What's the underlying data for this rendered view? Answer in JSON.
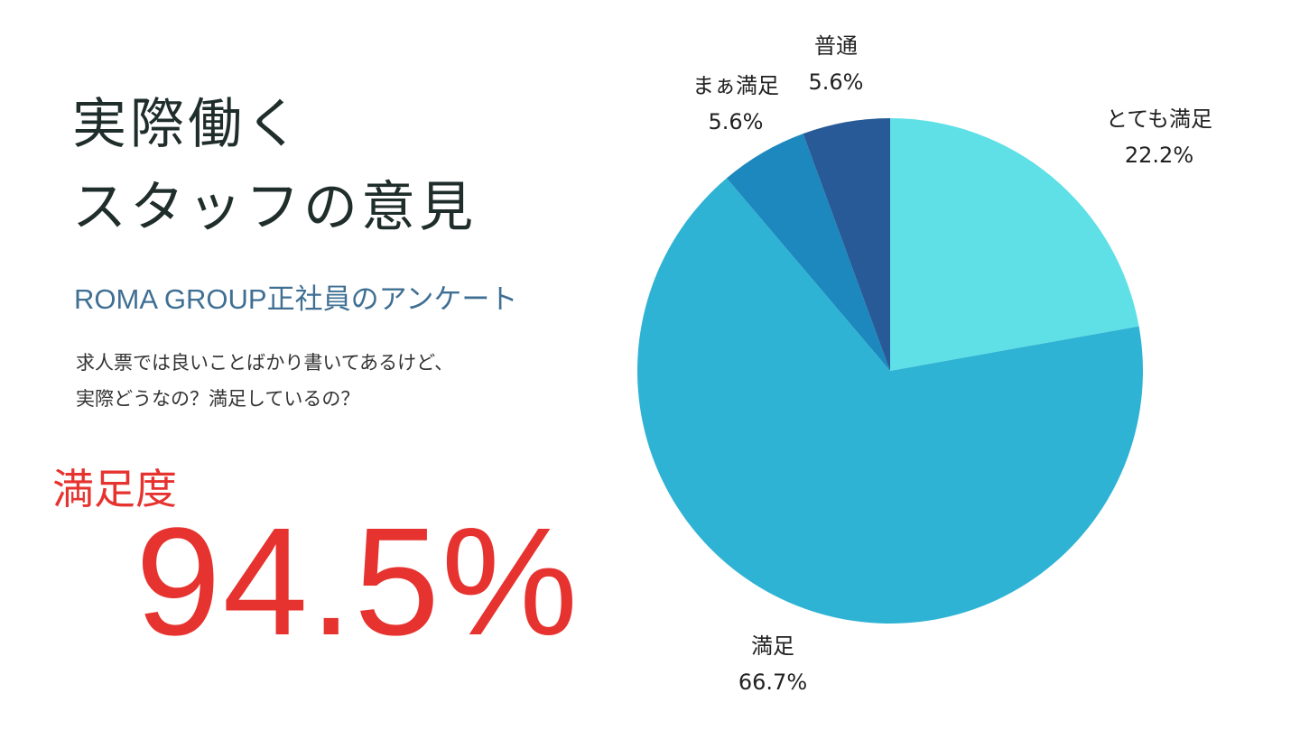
{
  "headline": {
    "line1": "実際働く",
    "line2": "スタッフの意見"
  },
  "subtitle": "ROMA GROUP正社員のアンケート",
  "description": {
    "line1": "求人票では良いことばかり書いてあるけど、",
    "line2": "実際どうなの？満足しているの？"
  },
  "satisfaction": {
    "label": "満足度",
    "value": "94.5%"
  },
  "colors": {
    "red": "#e6332f",
    "title": "#1f2d2b",
    "subtitle": "#3f6f93"
  },
  "chart_data": {
    "type": "pie",
    "start_angle_deg": 0,
    "direction": "clockwise",
    "slices": [
      {
        "label": "とても満足",
        "value": 22.2,
        "display": "22.2%",
        "color": "#5ee0e6"
      },
      {
        "label": "満足",
        "value": 66.7,
        "display": "66.7%",
        "color": "#2fb3d4"
      },
      {
        "label": "まぁ満足",
        "value": 5.6,
        "display": "5.6%",
        "color": "#1c88bd"
      },
      {
        "label": "普通",
        "value": 5.6,
        "display": "5.6%",
        "color": "#275a96"
      }
    ]
  }
}
